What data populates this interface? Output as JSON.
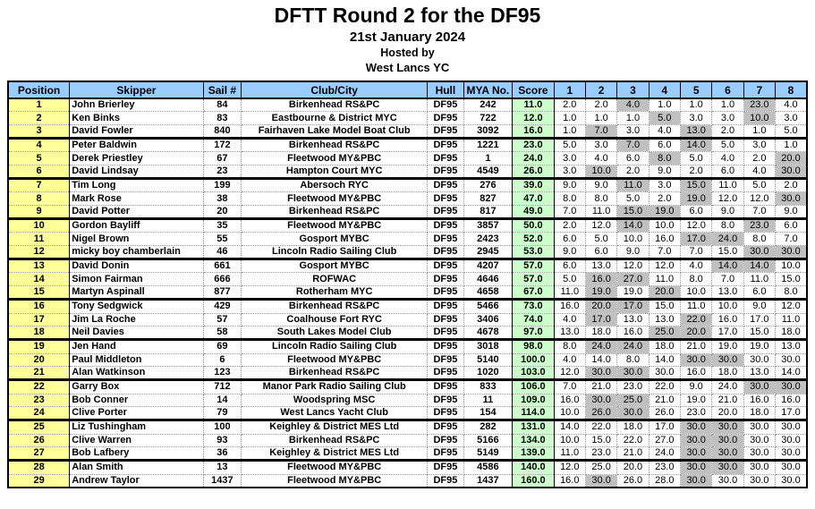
{
  "page": {
    "title": "DFTT Round 2 for the DF95",
    "date": "21st January 2024",
    "hosted_by": "Hosted by",
    "host_club": "West Lancs YC"
  },
  "colors": {
    "header_bg": "#99ccff",
    "position_bg": "#ffff99",
    "score_bg": "#ccffcc",
    "discard_bg": "#c0c0c0"
  },
  "table": {
    "columns": [
      "Position",
      "Skipper",
      "Sail #",
      "Club/City",
      "Hull",
      "MYA No.",
      "Score",
      "1",
      "2",
      "3",
      "4",
      "5",
      "6",
      "7",
      "8"
    ],
    "rows": [
      {
        "pos": "1",
        "skipper": "John Brierley",
        "sail": "84",
        "club": "Birkenhead RS&PC",
        "hull": "DF95",
        "mya": "242",
        "score": "11.0",
        "races": [
          "2.0",
          "2.0",
          "4.0",
          "1.0",
          "1.0",
          "1.0",
          "23.0",
          "4.0"
        ],
        "discards": [
          2,
          6
        ]
      },
      {
        "pos": "2",
        "skipper": "Ken Binks",
        "sail": "83",
        "club": "Eastbourne & District MYC",
        "hull": "DF95",
        "mya": "722",
        "score": "12.0",
        "races": [
          "1.0",
          "1.0",
          "1.0",
          "5.0",
          "3.0",
          "3.0",
          "10.0",
          "3.0"
        ],
        "discards": [
          3,
          6
        ]
      },
      {
        "pos": "3",
        "skipper": "David Fowler",
        "sail": "840",
        "club": "Fairhaven Lake Model Boat Club",
        "hull": "DF95",
        "mya": "3092",
        "score": "16.0",
        "races": [
          "1.0",
          "7.0",
          "3.0",
          "4.0",
          "13.0",
          "2.0",
          "1.0",
          "5.0"
        ],
        "discards": [
          1,
          4
        ]
      },
      {
        "pos": "4",
        "skipper": "Peter Baldwin",
        "sail": "172",
        "club": "Birkenhead RS&PC",
        "hull": "DF95",
        "mya": "1221",
        "score": "23.0",
        "races": [
          "5.0",
          "3.0",
          "7.0",
          "6.0",
          "14.0",
          "5.0",
          "3.0",
          "1.0"
        ],
        "discards": [
          2,
          4
        ]
      },
      {
        "pos": "5",
        "skipper": "Derek Priestley",
        "sail": "67",
        "club": "Fleetwood MY&PBC",
        "hull": "DF95",
        "mya": "1",
        "score": "24.0",
        "races": [
          "3.0",
          "4.0",
          "6.0",
          "8.0",
          "5.0",
          "4.0",
          "2.0",
          "20.0"
        ],
        "discards": [
          3,
          7
        ]
      },
      {
        "pos": "6",
        "skipper": "David Lindsay",
        "sail": "23",
        "club": "Hampton Court MYC",
        "hull": "DF95",
        "mya": "4549",
        "score": "26.0",
        "races": [
          "3.0",
          "10.0",
          "2.0",
          "9.0",
          "2.0",
          "6.0",
          "4.0",
          "30.0"
        ],
        "discards": [
          1,
          7
        ]
      },
      {
        "pos": "7",
        "skipper": "Tim Long",
        "sail": "199",
        "club": "Abersoch RYC",
        "hull": "DF95",
        "mya": "276",
        "score": "39.0",
        "races": [
          "9.0",
          "9.0",
          "11.0",
          "3.0",
          "15.0",
          "11.0",
          "5.0",
          "2.0"
        ],
        "discards": [
          2,
          4
        ]
      },
      {
        "pos": "8",
        "skipper": "Mark Rose",
        "sail": "38",
        "club": "Fleetwood MY&PBC",
        "hull": "DF95",
        "mya": "827",
        "score": "47.0",
        "races": [
          "8.0",
          "8.0",
          "5.0",
          "2.0",
          "19.0",
          "12.0",
          "12.0",
          "30.0"
        ],
        "discards": [
          4,
          7
        ]
      },
      {
        "pos": "9",
        "skipper": "David Potter",
        "sail": "20",
        "club": "Birkenhead RS&PC",
        "hull": "DF95",
        "mya": "817",
        "score": "49.0",
        "races": [
          "7.0",
          "11.0",
          "15.0",
          "19.0",
          "6.0",
          "9.0",
          "7.0",
          "9.0"
        ],
        "discards": [
          2,
          3
        ]
      },
      {
        "pos": "10",
        "skipper": "Gordon Bayliff",
        "sail": "35",
        "club": "Fleetwood MY&PBC",
        "hull": "DF95",
        "mya": "3857",
        "score": "50.0",
        "races": [
          "2.0",
          "12.0",
          "14.0",
          "10.0",
          "12.0",
          "8.0",
          "23.0",
          "6.0"
        ],
        "discards": [
          2,
          6
        ]
      },
      {
        "pos": "11",
        "skipper": "Nigel Brown",
        "sail": "55",
        "club": "Gosport MYBC",
        "hull": "DF95",
        "mya": "2423",
        "score": "52.0",
        "races": [
          "6.0",
          "5.0",
          "10.0",
          "16.0",
          "17.0",
          "24.0",
          "8.0",
          "7.0"
        ],
        "discards": [
          4,
          5
        ]
      },
      {
        "pos": "12",
        "skipper": "micky boy chamberlain",
        "sail": "46",
        "club": "Lincoln Radio Sailing Club",
        "hull": "DF95",
        "mya": "2945",
        "score": "53.0",
        "races": [
          "9.0",
          "6.0",
          "9.0",
          "7.0",
          "7.0",
          "15.0",
          "30.0",
          "30.0"
        ],
        "discards": [
          6,
          7
        ]
      },
      {
        "pos": "13",
        "skipper": "David Donin",
        "sail": "661",
        "club": "Gosport MYBC",
        "hull": "DF95",
        "mya": "4207",
        "score": "57.0",
        "races": [
          "6.0",
          "13.0",
          "12.0",
          "12.0",
          "4.0",
          "14.0",
          "14.0",
          "10.0"
        ],
        "discards": [
          5,
          6
        ]
      },
      {
        "pos": "14",
        "skipper": "Simon Fairman",
        "sail": "666",
        "club": "ROFWAC",
        "hull": "DF95",
        "mya": "4646",
        "score": "57.0",
        "races": [
          "5.0",
          "16.0",
          "27.0",
          "11.0",
          "8.0",
          "7.0",
          "11.0",
          "15.0"
        ],
        "discards": [
          1,
          2
        ]
      },
      {
        "pos": "15",
        "skipper": "Martyn Aspinall",
        "sail": "877",
        "club": "Rotherham MYC",
        "hull": "DF95",
        "mya": "4658",
        "score": "67.0",
        "races": [
          "11.0",
          "19.0",
          "19.0",
          "20.0",
          "10.0",
          "13.0",
          "6.0",
          "8.0"
        ],
        "discards": [
          1,
          3
        ]
      },
      {
        "pos": "16",
        "skipper": "Tony Sedgwick",
        "sail": "429",
        "club": "Birkenhead RS&PC",
        "hull": "DF95",
        "mya": "5466",
        "score": "73.0",
        "races": [
          "16.0",
          "20.0",
          "17.0",
          "15.0",
          "11.0",
          "10.0",
          "9.0",
          "12.0"
        ],
        "discards": [
          1,
          2
        ]
      },
      {
        "pos": "17",
        "skipper": "Jim La Roche",
        "sail": "57",
        "club": "Coalhouse Fort RYC",
        "hull": "DF95",
        "mya": "3406",
        "score": "74.0",
        "races": [
          "4.0",
          "17.0",
          "13.0",
          "13.0",
          "22.0",
          "16.0",
          "17.0",
          "11.0"
        ],
        "discards": [
          1,
          4
        ]
      },
      {
        "pos": "18",
        "skipper": "Neil Davies",
        "sail": "58",
        "club": "South Lakes Model Club",
        "hull": "DF95",
        "mya": "4678",
        "score": "97.0",
        "races": [
          "13.0",
          "18.0",
          "16.0",
          "25.0",
          "20.0",
          "17.0",
          "15.0",
          "18.0"
        ],
        "discards": [
          3,
          4
        ]
      },
      {
        "pos": "19",
        "skipper": "Jen Hand",
        "sail": "69",
        "club": "Lincoln Radio Sailing Club",
        "hull": "DF95",
        "mya": "3018",
        "score": "98.0",
        "races": [
          "8.0",
          "24.0",
          "24.0",
          "18.0",
          "21.0",
          "19.0",
          "19.0",
          "13.0"
        ],
        "discards": [
          1,
          2
        ]
      },
      {
        "pos": "20",
        "skipper": "Paul Middleton",
        "sail": "6",
        "club": "Fleetwood MY&PBC",
        "hull": "DF95",
        "mya": "5140",
        "score": "100.0",
        "races": [
          "4.0",
          "14.0",
          "8.0",
          "14.0",
          "30.0",
          "30.0",
          "30.0",
          "30.0"
        ],
        "discards": [
          4,
          5
        ]
      },
      {
        "pos": "21",
        "skipper": "Alan Watkinson",
        "sail": "123",
        "club": "Birkenhead RS&PC",
        "hull": "DF95",
        "mya": "1020",
        "score": "103.0",
        "races": [
          "12.0",
          "30.0",
          "30.0",
          "30.0",
          "16.0",
          "18.0",
          "13.0",
          "14.0"
        ],
        "discards": [
          1,
          2
        ]
      },
      {
        "pos": "22",
        "skipper": "Garry Box",
        "sail": "712",
        "club": "Manor Park Radio Sailing Club",
        "hull": "DF95",
        "mya": "833",
        "score": "106.0",
        "races": [
          "7.0",
          "21.0",
          "23.0",
          "22.0",
          "9.0",
          "24.0",
          "30.0",
          "30.0"
        ],
        "discards": [
          6,
          7
        ]
      },
      {
        "pos": "23",
        "skipper": "Bob Conner",
        "sail": "14",
        "club": "Woodspring MSC",
        "hull": "DF95",
        "mya": "11",
        "score": "109.0",
        "races": [
          "16.0",
          "30.0",
          "25.0",
          "21.0",
          "19.0",
          "21.0",
          "16.0",
          "16.0"
        ],
        "discards": [
          1,
          2
        ]
      },
      {
        "pos": "24",
        "skipper": "Clive Porter",
        "sail": "79",
        "club": "West Lancs Yacht Club",
        "hull": "DF95",
        "mya": "154",
        "score": "114.0",
        "races": [
          "10.0",
          "26.0",
          "30.0",
          "26.0",
          "23.0",
          "20.0",
          "18.0",
          "17.0"
        ],
        "discards": [
          1,
          2
        ]
      },
      {
        "pos": "25",
        "skipper": "Liz Tushingham",
        "sail": "100",
        "club": "Keighley & District MES Ltd",
        "hull": "DF95",
        "mya": "282",
        "score": "131.0",
        "races": [
          "14.0",
          "22.0",
          "18.0",
          "17.0",
          "30.0",
          "30.0",
          "30.0",
          "30.0"
        ],
        "discards": [
          4,
          5
        ]
      },
      {
        "pos": "26",
        "skipper": "Clive Warren",
        "sail": "93",
        "club": "Birkenhead RS&PC",
        "hull": "DF95",
        "mya": "5166",
        "score": "134.0",
        "races": [
          "10.0",
          "15.0",
          "22.0",
          "27.0",
          "30.0",
          "30.0",
          "30.0",
          "30.0"
        ],
        "discards": [
          4,
          5
        ]
      },
      {
        "pos": "27",
        "skipper": "Bob Lafbery",
        "sail": "36",
        "club": "Keighley & District MES Ltd",
        "hull": "DF95",
        "mya": "5149",
        "score": "139.0",
        "races": [
          "11.0",
          "23.0",
          "21.0",
          "24.0",
          "30.0",
          "30.0",
          "30.0",
          "30.0"
        ],
        "discards": [
          4,
          5
        ]
      },
      {
        "pos": "28",
        "skipper": "Alan Smith",
        "sail": "13",
        "club": "Fleetwood MY&PBC",
        "hull": "DF95",
        "mya": "4586",
        "score": "140.0",
        "races": [
          "12.0",
          "25.0",
          "20.0",
          "23.0",
          "30.0",
          "30.0",
          "30.0",
          "30.0"
        ],
        "discards": [
          4,
          5
        ]
      },
      {
        "pos": "29",
        "skipper": "Andrew Taylor",
        "sail": "1437",
        "club": "Fleetwood MY&PBC",
        "hull": "DF95",
        "mya": "1437",
        "score": "160.0",
        "races": [
          "16.0",
          "30.0",
          "26.0",
          "28.0",
          "30.0",
          "30.0",
          "30.0",
          "30.0"
        ],
        "discards": [
          1,
          4
        ]
      }
    ]
  }
}
